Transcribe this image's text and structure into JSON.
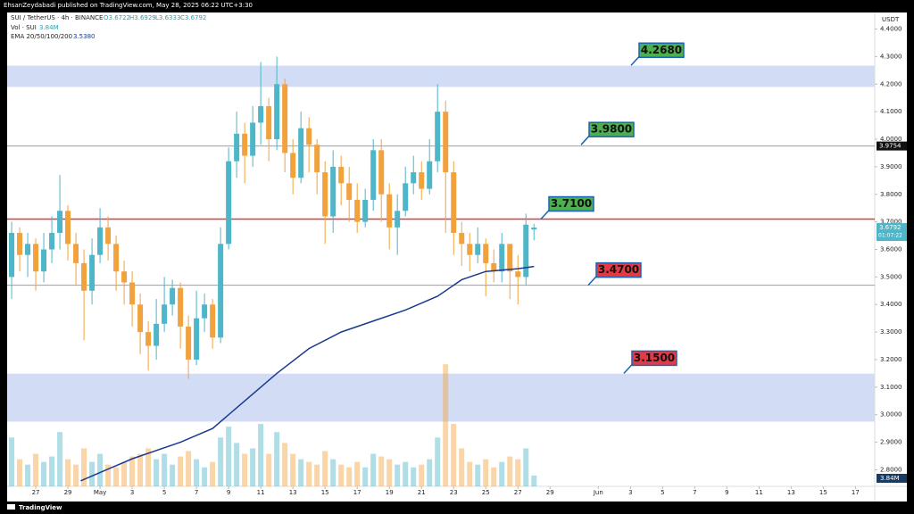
{
  "header": "EhsanZeydabadi published on TradingView.com, May 28, 2025 06:22 UTC+3:30",
  "footer": "TradingView",
  "chart_data": {
    "type": "candlestick",
    "legend": {
      "symbol": "SUI / TetherUS · 4h · BINANCE",
      "open": "O3.6722",
      "high": "H3.6929",
      "low": "L3.6333",
      "close": "C3.6792",
      "volume_name": "Vol · SUI",
      "volume_value": "3.84M",
      "ema_name": "EMA 20/50/100/200",
      "ema_value": "3.5380"
    },
    "currency": "USDT",
    "up_color": "#4db6c8",
    "down_color": "#f2a23c",
    "x": [
      -1.5,
      -1,
      -0.5,
      0,
      0.5,
      1,
      1.5,
      2,
      2.5,
      3,
      3.5,
      4,
      4.5,
      5,
      5.5,
      6,
      6.5,
      7,
      7.5,
      8,
      8.5,
      9,
      9.5,
      10,
      10.5,
      11,
      11.5,
      12,
      12.5,
      13,
      13.5,
      14,
      14.5,
      15,
      15.5,
      16,
      16.5,
      17,
      17.5,
      18,
      18.5,
      19,
      19.5,
      20,
      20.5,
      21,
      21.5,
      22,
      22.5,
      23,
      23.5,
      24,
      24.5,
      25,
      25.5,
      26,
      26.5,
      27,
      27.5,
      28,
      28.5,
      29,
      29.5,
      30,
      30.5,
      31
    ],
    "open": [
      3.5,
      3.66,
      3.58,
      3.62,
      3.52,
      3.6,
      3.66,
      3.74,
      3.62,
      3.55,
      3.45,
      3.58,
      3.68,
      3.62,
      3.52,
      3.48,
      3.4,
      3.3,
      3.25,
      3.33,
      3.4,
      3.46,
      3.32,
      3.2,
      3.35,
      3.4,
      3.28,
      3.62,
      3.92,
      4.02,
      3.94,
      4.06,
      4.12,
      4.0,
      4.2,
      3.95,
      3.86,
      4.04,
      3.98,
      3.88,
      3.72,
      3.9,
      3.84,
      3.78,
      3.7,
      3.78,
      3.96,
      3.8,
      3.68,
      3.74,
      3.84,
      3.88,
      3.82,
      3.92,
      4.1,
      3.88,
      3.66,
      3.62,
      3.58,
      3.62,
      3.55,
      3.52,
      3.62,
      3.52,
      3.5,
      3.6722
    ],
    "high": [
      3.7,
      3.68,
      3.66,
      3.64,
      3.66,
      3.72,
      3.87,
      3.76,
      3.66,
      3.6,
      3.64,
      3.75,
      3.72,
      3.65,
      3.56,
      3.52,
      3.44,
      3.34,
      3.42,
      3.5,
      3.49,
      3.48,
      3.36,
      3.45,
      3.44,
      3.42,
      3.68,
      3.97,
      4.1,
      4.06,
      4.12,
      4.28,
      4.15,
      4.3,
      4.22,
      4.0,
      4.1,
      4.08,
      4.0,
      3.92,
      3.96,
      3.94,
      3.9,
      3.84,
      3.82,
      4.0,
      4.0,
      3.84,
      3.8,
      3.9,
      3.94,
      3.92,
      4.0,
      4.2,
      4.14,
      3.92,
      3.7,
      3.66,
      3.68,
      3.64,
      3.6,
      3.66,
      3.62,
      3.58,
      3.73,
      3.6929
    ],
    "low": [
      3.42,
      3.52,
      3.5,
      3.45,
      3.48,
      3.55,
      3.6,
      3.56,
      3.47,
      3.27,
      3.4,
      3.55,
      3.56,
      3.45,
      3.4,
      3.32,
      3.22,
      3.16,
      3.2,
      3.3,
      3.36,
      3.24,
      3.13,
      3.18,
      3.3,
      3.24,
      3.26,
      3.6,
      3.86,
      3.84,
      3.9,
      3.98,
      3.92,
      3.96,
      3.88,
      3.8,
      3.84,
      3.88,
      3.8,
      3.62,
      3.66,
      3.76,
      3.7,
      3.66,
      3.68,
      3.74,
      3.7,
      3.6,
      3.58,
      3.72,
      3.8,
      3.78,
      3.8,
      3.88,
      3.66,
      3.58,
      3.54,
      3.52,
      3.55,
      3.43,
      3.48,
      3.48,
      3.42,
      3.4,
      3.47,
      3.6333
    ],
    "close": [
      3.66,
      3.58,
      3.62,
      3.52,
      3.6,
      3.66,
      3.74,
      3.62,
      3.55,
      3.45,
      3.58,
      3.68,
      3.62,
      3.52,
      3.48,
      3.4,
      3.3,
      3.25,
      3.33,
      3.4,
      3.46,
      3.32,
      3.2,
      3.35,
      3.4,
      3.28,
      3.62,
      3.92,
      4.02,
      3.94,
      4.06,
      4.12,
      4.0,
      4.2,
      3.95,
      3.86,
      4.04,
      3.98,
      3.88,
      3.72,
      3.9,
      3.84,
      3.78,
      3.7,
      3.78,
      3.96,
      3.8,
      3.68,
      3.74,
      3.84,
      3.88,
      3.82,
      3.92,
      4.1,
      3.88,
      3.66,
      3.62,
      3.58,
      3.62,
      3.55,
      3.52,
      3.62,
      3.52,
      3.5,
      3.69,
      3.6792
    ],
    "volume": [
      18,
      10,
      8,
      12,
      9,
      11,
      20,
      10,
      8,
      14,
      9,
      12,
      8,
      7,
      9,
      11,
      12,
      14,
      10,
      12,
      8,
      11,
      13,
      10,
      7,
      9,
      18,
      22,
      16,
      12,
      14,
      23,
      12,
      20,
      16,
      12,
      10,
      9,
      8,
      13,
      10,
      8,
      7,
      9,
      7,
      12,
      11,
      10,
      8,
      9,
      7,
      8,
      10,
      18,
      45,
      23,
      14,
      9,
      8,
      10,
      7,
      9,
      11,
      10,
      14,
      4
    ],
    "ema": {
      "color": "#1a3a8f",
      "x": [
        2.8,
        6,
        9,
        11,
        13,
        15,
        17,
        19,
        21,
        23,
        25,
        26.5,
        28,
        30,
        31
      ],
      "values": [
        2.76,
        2.84,
        2.9,
        2.95,
        3.05,
        3.15,
        3.24,
        3.3,
        3.34,
        3.38,
        3.43,
        3.49,
        3.52,
        3.53,
        3.538
      ]
    },
    "zones": [
      {
        "from": 4.19,
        "to": 4.267
      },
      {
        "from": 2.975,
        "to": 3.149
      }
    ],
    "zone_color": "#d3dcf5",
    "levels": [
      {
        "value": 3.71,
        "color": "#e0393e"
      },
      {
        "value": 3.9754,
        "color": "#9e9e9e"
      },
      {
        "value": 3.47,
        "color": "#9e9e9e"
      }
    ],
    "callouts": [
      {
        "value": 4.268,
        "label": "4.2680",
        "color": "#4caf50"
      },
      {
        "value": 3.98,
        "label": "3.9800",
        "color": "#4caf50"
      },
      {
        "value": 3.71,
        "label": "3.7100",
        "color": "#4caf50"
      },
      {
        "value": 3.47,
        "label": "3.4700",
        "color": "#e53945"
      },
      {
        "value": 3.15,
        "label": "3.1500",
        "color": "#e53945"
      }
    ],
    "price_tags": [
      {
        "value": 3.9754,
        "label": "3.9754",
        "color": "#111111"
      },
      {
        "value": 3.6792,
        "label": "3.6792",
        "color": "#4db6c8"
      }
    ],
    "countdown": "01:07:22",
    "volume_tag": "3.84M",
    "ylim": [
      2.74,
      4.46
    ],
    "yticks": [
      {
        "value": 2.8,
        "label": "2.8000"
      },
      {
        "value": 2.9,
        "label": "2.9000"
      },
      {
        "value": 3.0,
        "label": "3.0000"
      },
      {
        "value": 3.1,
        "label": "3.1000"
      },
      {
        "value": 3.2,
        "label": "3.2000"
      },
      {
        "value": 3.3,
        "label": "3.3000"
      },
      {
        "value": 3.4,
        "label": "3.4000"
      },
      {
        "value": 3.5,
        "label": "3.5000"
      },
      {
        "value": 3.6,
        "label": "3.6000"
      },
      {
        "value": 3.7,
        "label": "3.7000"
      },
      {
        "value": 3.8,
        "label": "3.8000"
      },
      {
        "value": 3.9,
        "label": "3.9000"
      },
      {
        "value": 4.0,
        "label": "4.0000"
      },
      {
        "value": 4.1,
        "label": "4.1000"
      },
      {
        "value": 4.2,
        "label": "4.2000"
      },
      {
        "value": 4.3,
        "label": "4.3000"
      },
      {
        "value": 4.4,
        "label": "4.4000"
      }
    ],
    "xlim": [
      -1.78,
      52.2
    ],
    "xticks": [
      {
        "value": 0,
        "label": "27"
      },
      {
        "value": 2,
        "label": "29"
      },
      {
        "value": 4,
        "label": "May"
      },
      {
        "value": 6,
        "label": "3"
      },
      {
        "value": 8,
        "label": "5"
      },
      {
        "value": 10,
        "label": "7"
      },
      {
        "value": 12,
        "label": "9"
      },
      {
        "value": 14,
        "label": "11"
      },
      {
        "value": 16,
        "label": "13"
      },
      {
        "value": 18,
        "label": "15"
      },
      {
        "value": 20,
        "label": "17"
      },
      {
        "value": 22,
        "label": "19"
      },
      {
        "value": 24,
        "label": "21"
      },
      {
        "value": 26,
        "label": "23"
      },
      {
        "value": 28,
        "label": "25"
      },
      {
        "value": 30,
        "label": "27"
      },
      {
        "value": 32,
        "label": "29"
      },
      {
        "value": 35,
        "label": "Jun"
      },
      {
        "value": 37,
        "label": "3"
      },
      {
        "value": 39,
        "label": "5"
      },
      {
        "value": 41,
        "label": "7"
      },
      {
        "value": 43,
        "label": "9"
      },
      {
        "value": 45,
        "label": "11"
      },
      {
        "value": 47,
        "label": "13"
      },
      {
        "value": 49,
        "label": "15"
      },
      {
        "value": 51,
        "label": "17"
      }
    ]
  }
}
